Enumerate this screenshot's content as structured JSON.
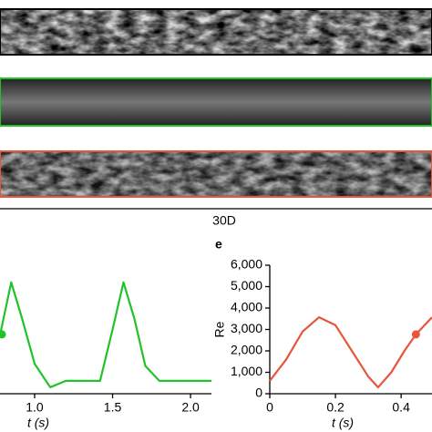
{
  "scale_bar_label": "30D",
  "chart_data": [
    {
      "type": "line",
      "x_label": "t (s)",
      "xlim": [
        0.778,
        2.134
      ],
      "ylim": [
        0,
        6000
      ],
      "xticks": [
        {
          "value": 1.0,
          "label": "1.0"
        },
        {
          "value": 1.5,
          "label": "1.5"
        },
        {
          "value": 2.0,
          "label": "2.0"
        }
      ],
      "series": [
        {
          "color": "#22c22a",
          "x": [
            0.78,
            0.85,
            0.92,
            1.0,
            1.1,
            1.2,
            1.3,
            1.42,
            1.5,
            1.57,
            1.64,
            1.71,
            1.8,
            1.9,
            2.0,
            2.134
          ],
          "values": [
            2800,
            5200,
            3500,
            1400,
            300,
            600,
            600,
            600,
            3000,
            5200,
            3500,
            1300,
            600,
            600,
            600,
            600
          ],
          "highlight": {
            "x": 0.79,
            "value": 2770
          }
        }
      ]
    },
    {
      "type": "line",
      "panel_label": "e",
      "x_label": "t (s)",
      "y_label": "Re",
      "xlim": [
        0,
        0.494
      ],
      "ylim": [
        0,
        6000
      ],
      "xticks": [
        0,
        0.2,
        0.4
      ],
      "yticks": [
        0,
        {
          "value": 1000,
          "label": "1,000"
        },
        {
          "value": 2000,
          "label": "2,000"
        },
        {
          "value": 3000,
          "label": "3,000"
        },
        {
          "value": 4000,
          "label": "4,000"
        },
        {
          "value": 5000,
          "label": "5,000"
        },
        {
          "value": 6000,
          "label": "6,000"
        }
      ],
      "series": [
        {
          "color": "#e8553b",
          "x": [
            0,
            0.05,
            0.1,
            0.15,
            0.2,
            0.25,
            0.3,
            0.33,
            0.37,
            0.41,
            0.445,
            0.494
          ],
          "values": [
            600,
            1600,
            2900,
            3570,
            3200,
            2000,
            800,
            300,
            1000,
            2000,
            2770,
            3570
          ],
          "highlight": {
            "x": 0.445,
            "value": 2770
          }
        }
      ]
    }
  ]
}
